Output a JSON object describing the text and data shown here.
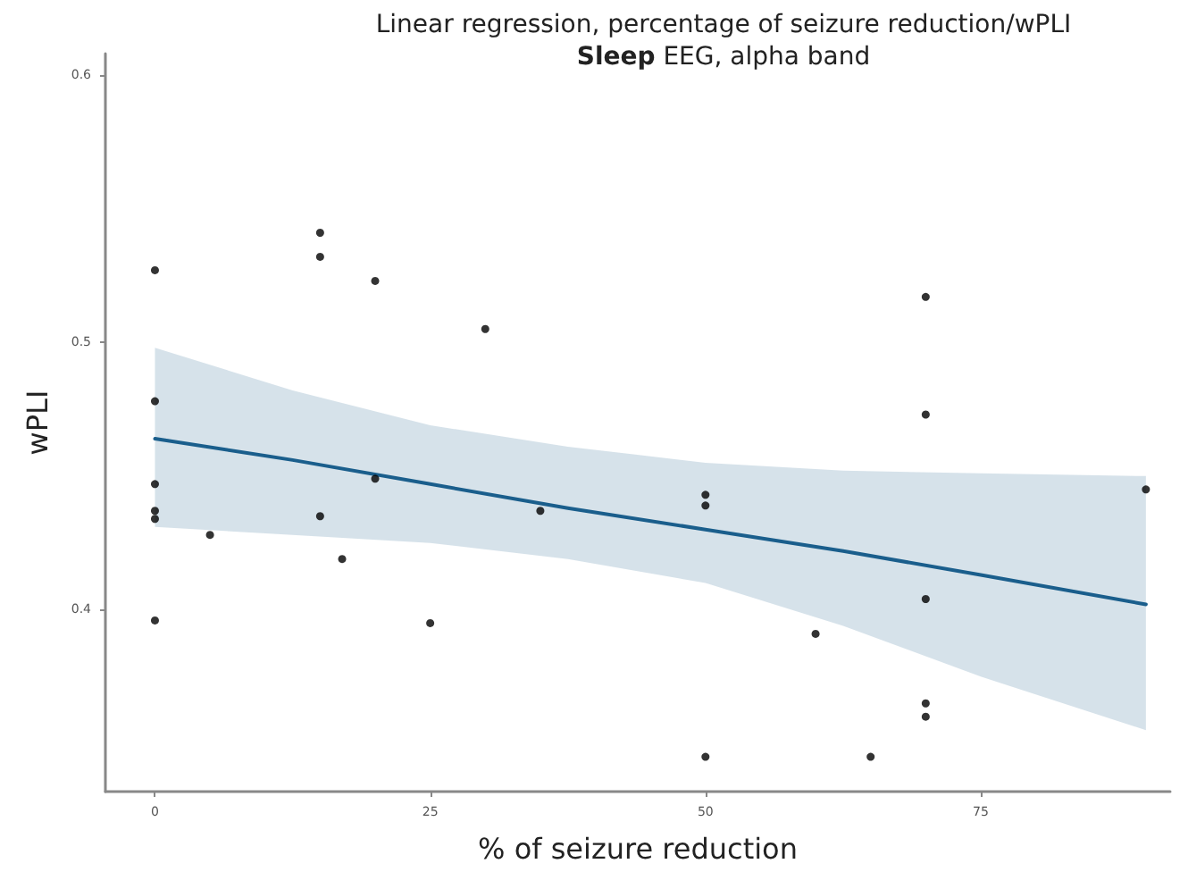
{
  "chart_data": {
    "type": "scatter",
    "title": "Linear regression, percentage of seizure reduction/wPLI",
    "subtitle": "Sleep EEG, alpha band",
    "xlabel": "% of seizure reduction",
    "ylabel": "wPLI",
    "xlim": [
      -4.5,
      92.2
    ],
    "ylim": [
      0.332,
      0.608
    ],
    "xticks": [
      0,
      25,
      50,
      75
    ],
    "yticks": [
      0.4,
      0.5,
      0.6
    ],
    "grid": false,
    "marker": "circle",
    "series": [
      {
        "color": "#000000",
        "x": [
          0,
          0,
          0,
          0,
          0,
          0,
          5,
          15,
          15,
          15,
          17,
          20,
          20,
          25,
          30,
          35,
          50,
          50,
          50,
          60,
          65,
          70,
          70,
          70,
          70,
          70,
          90
        ],
        "values": [
          0.527,
          0.478,
          0.447,
          0.437,
          0.434,
          0.396,
          0.428,
          0.541,
          0.532,
          0.435,
          0.419,
          0.523,
          0.449,
          0.395,
          0.505,
          0.437,
          0.443,
          0.439,
          0.345,
          0.391,
          0.345,
          0.517,
          0.473,
          0.404,
          0.365,
          0.36,
          0.445
        ]
      },
      {
        "type": "line",
        "color": "#1a5e8c",
        "line_style": "solid",
        "marker": "none",
        "x": [
          0,
          12.5,
          25,
          37.5,
          50,
          62.5,
          75,
          90
        ],
        "values": [
          0.464,
          0.456,
          0.447,
          0.438,
          0.43,
          0.422,
          0.413,
          0.402
        ],
        "lower": [
          0.431,
          0.428,
          0.425,
          0.419,
          0.41,
          0.394,
          0.375,
          0.355
        ],
        "upper": [
          0.498,
          0.482,
          0.469,
          0.461,
          0.455,
          0.452,
          0.451,
          0.45
        ]
      }
    ]
  }
}
